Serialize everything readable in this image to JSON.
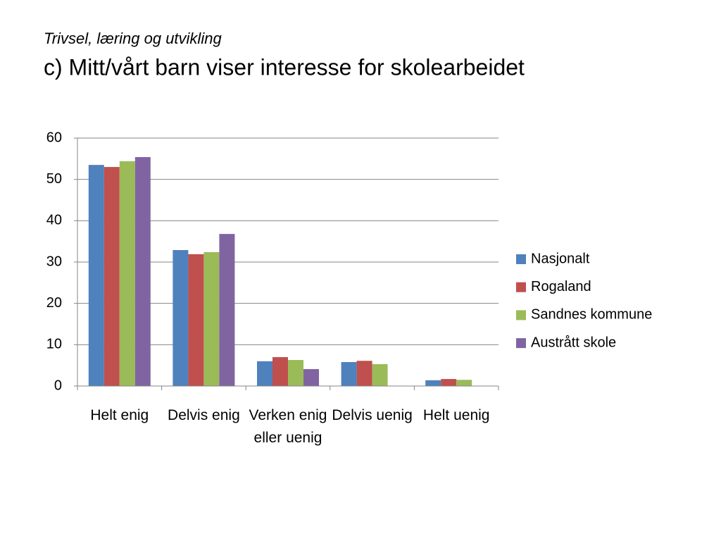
{
  "subtitle": "Trivsel, læring og utvikling",
  "chart_data": {
    "type": "bar",
    "title": "c) Mitt/vårt barn viser interesse for skolearbeidet",
    "categories": [
      "Helt enig",
      "Delvis enig",
      "Verken enig eller uenig",
      "Delvis uenig",
      "Helt uenig"
    ],
    "series": [
      {
        "name": "Nasjonalt",
        "color": "#4f81bd",
        "values": [
          53.5,
          32.9,
          6.0,
          5.8,
          1.4
        ]
      },
      {
        "name": "Rogaland",
        "color": "#c0504d",
        "values": [
          53.0,
          31.9,
          7.0,
          6.1,
          1.7
        ]
      },
      {
        "name": "Sandnes kommune",
        "color": "#9bbb59",
        "values": [
          54.4,
          32.4,
          6.3,
          5.3,
          1.5
        ]
      },
      {
        "name": "Austrått skole",
        "color": "#8064a2",
        "values": [
          55.4,
          36.8,
          4.1,
          null,
          null
        ]
      }
    ],
    "ylim": [
      0,
      60
    ],
    "yticks": [
      0,
      10,
      20,
      30,
      40,
      50,
      60
    ],
    "grid": true,
    "legend": "right"
  }
}
